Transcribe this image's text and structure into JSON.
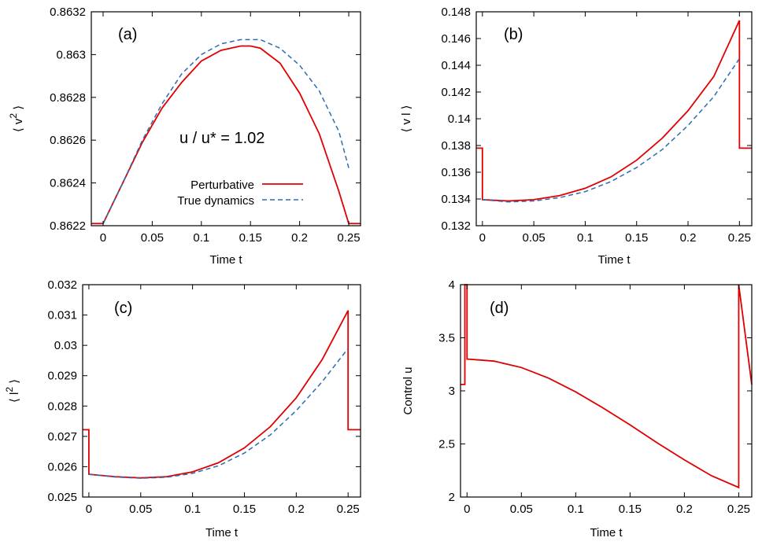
{
  "colors": {
    "perturbative": "#e00000",
    "true_dynamics": "#2b6cb0",
    "axis": "#000000"
  },
  "chart_data": [
    {
      "type": "line",
      "panel_label": "(a)",
      "xlabel": "Time  t",
      "ylabel_base": "v",
      "ylabel_sup": "2",
      "xlim": [
        -0.012,
        0.262
      ],
      "ylim": [
        0.8622,
        0.8632
      ],
      "xticks": [
        0,
        0.05,
        0.1,
        0.15,
        0.2,
        0.25
      ],
      "xtick_labels": [
        "0",
        "0.05",
        "0.1",
        "0.15",
        "0.2",
        "0.25"
      ],
      "yticks": [
        0.8622,
        0.8624,
        0.8626,
        0.8628,
        0.863,
        0.8632
      ],
      "ytick_labels": [
        "0.8622",
        "0.8624",
        "0.8626",
        "0.8628",
        "0.863",
        "0.8632"
      ],
      "annotation": "u / u* = 1.02",
      "legend": {
        "position": "center-left",
        "entries": [
          "Perturbative",
          "True dynamics"
        ]
      },
      "series": [
        {
          "name": "Perturbative",
          "style": "solid",
          "x": [
            -0.012,
            0,
            0,
            0.02,
            0.04,
            0.06,
            0.08,
            0.1,
            0.12,
            0.14,
            0.15,
            0.16,
            0.18,
            0.2,
            0.22,
            0.24,
            0.25,
            0.25,
            0.262
          ],
          "y": [
            0.86221,
            0.86221,
            0.86221,
            0.8624,
            0.86259,
            0.86275,
            0.86287,
            0.86297,
            0.86302,
            0.86304,
            0.86304,
            0.86303,
            0.86296,
            0.86282,
            0.86263,
            0.86236,
            0.86221,
            0.86221,
            0.86221
          ]
        },
        {
          "name": "True dynamics",
          "style": "dashed",
          "x": [
            0,
            0.02,
            0.04,
            0.06,
            0.08,
            0.1,
            0.12,
            0.14,
            0.16,
            0.18,
            0.2,
            0.22,
            0.24,
            0.25
          ],
          "y": [
            0.86221,
            0.8624,
            0.8626,
            0.86277,
            0.86291,
            0.863,
            0.86305,
            0.86307,
            0.86307,
            0.86303,
            0.86295,
            0.86283,
            0.86264,
            0.86247
          ]
        }
      ]
    },
    {
      "type": "line",
      "panel_label": "(b)",
      "xlabel": "Time  t",
      "ylabel_base": "v l",
      "ylabel_sup": "",
      "xlim": [
        -0.006,
        0.262
      ],
      "ylim": [
        0.132,
        0.148
      ],
      "xticks": [
        0,
        0.05,
        0.1,
        0.15,
        0.2,
        0.25
      ],
      "xtick_labels": [
        "0",
        "0.05",
        "0.1",
        "0.15",
        "0.2",
        "0.25"
      ],
      "yticks": [
        0.132,
        0.134,
        0.136,
        0.138,
        0.14,
        0.142,
        0.144,
        0.146,
        0.148
      ],
      "ytick_labels": [
        "0.132",
        "0.134",
        "0.136",
        "0.138",
        "0.14",
        "0.142",
        "0.144",
        "0.146",
        "0.148"
      ],
      "series": [
        {
          "name": "Perturbative",
          "style": "solid",
          "x": [
            -0.006,
            0,
            0,
            0.025,
            0.05,
            0.075,
            0.1,
            0.125,
            0.15,
            0.175,
            0.2,
            0.225,
            0.25,
            0.25,
            0.262
          ],
          "y": [
            0.1378,
            0.1378,
            0.13395,
            0.13385,
            0.13395,
            0.13425,
            0.1348,
            0.13565,
            0.1369,
            0.13855,
            0.1406,
            0.14315,
            0.14735,
            0.1378,
            0.1378
          ]
        },
        {
          "name": "True dynamics",
          "style": "dashed",
          "x": [
            0,
            0.025,
            0.05,
            0.075,
            0.1,
            0.125,
            0.15,
            0.175,
            0.2,
            0.225,
            0.25
          ],
          "y": [
            0.13395,
            0.13378,
            0.13385,
            0.1341,
            0.13455,
            0.1353,
            0.13635,
            0.1377,
            0.1395,
            0.14165,
            0.1445
          ]
        }
      ]
    },
    {
      "type": "line",
      "panel_label": "(c)",
      "xlabel": "Time  t",
      "ylabel_base": "l",
      "ylabel_sup": "2",
      "xlim": [
        -0.006,
        0.262
      ],
      "ylim": [
        0.025,
        0.032
      ],
      "xticks": [
        0,
        0.05,
        0.1,
        0.15,
        0.2,
        0.25
      ],
      "xtick_labels": [
        "0",
        "0.05",
        "0.1",
        "0.15",
        "0.2",
        "0.25"
      ],
      "yticks": [
        0.025,
        0.026,
        0.027,
        0.028,
        0.029,
        0.03,
        0.031,
        0.032
      ],
      "ytick_labels": [
        "0.025",
        "0.026",
        "0.027",
        "0.028",
        "0.029",
        "0.03",
        "0.031",
        "0.032"
      ],
      "series": [
        {
          "name": "Perturbative",
          "style": "solid",
          "x": [
            -0.006,
            0,
            0,
            0.025,
            0.05,
            0.075,
            0.1,
            0.125,
            0.15,
            0.175,
            0.2,
            0.225,
            0.25,
            0.25,
            0.262
          ],
          "y": [
            0.02722,
            0.02722,
            0.02575,
            0.02567,
            0.02563,
            0.02567,
            0.02583,
            0.02613,
            0.02662,
            0.02732,
            0.02827,
            0.02953,
            0.03115,
            0.02722,
            0.02722
          ]
        },
        {
          "name": "True dynamics",
          "style": "dashed",
          "x": [
            0,
            0.025,
            0.05,
            0.075,
            0.1,
            0.125,
            0.15,
            0.175,
            0.2,
            0.225,
            0.25
          ],
          "y": [
            0.02575,
            0.02566,
            0.02562,
            0.02565,
            0.02578,
            0.02603,
            0.02645,
            0.02705,
            0.02785,
            0.0288,
            0.0299
          ]
        }
      ]
    },
    {
      "type": "line",
      "panel_label": "(d)",
      "xlabel": "Time  t",
      "ylabel": "Control  u",
      "xlim": [
        -0.006,
        0.262
      ],
      "ylim": [
        2,
        4
      ],
      "xticks": [
        0,
        0.05,
        0.1,
        0.15,
        0.2,
        0.25
      ],
      "xtick_labels": [
        "0",
        "0.05",
        "0.1",
        "0.15",
        "0.2",
        "0.25"
      ],
      "yticks": [
        2,
        2.5,
        3,
        3.5,
        4
      ],
      "ytick_labels": [
        "2",
        "2.5",
        "3",
        "3.5",
        "4"
      ],
      "series": [
        {
          "name": "Perturbative",
          "style": "solid",
          "x": [
            -0.006,
            -0.002,
            -0.002,
            0,
            0,
            0.025,
            0.05,
            0.075,
            0.1,
            0.125,
            0.15,
            0.175,
            0.2,
            0.225,
            0.25,
            0.25,
            0.262
          ],
          "y": [
            3.06,
            3.06,
            4.0,
            4.0,
            3.3,
            3.28,
            3.22,
            3.12,
            2.99,
            2.84,
            2.68,
            2.51,
            2.35,
            2.2,
            2.09,
            4.0,
            3.06
          ]
        }
      ]
    }
  ]
}
